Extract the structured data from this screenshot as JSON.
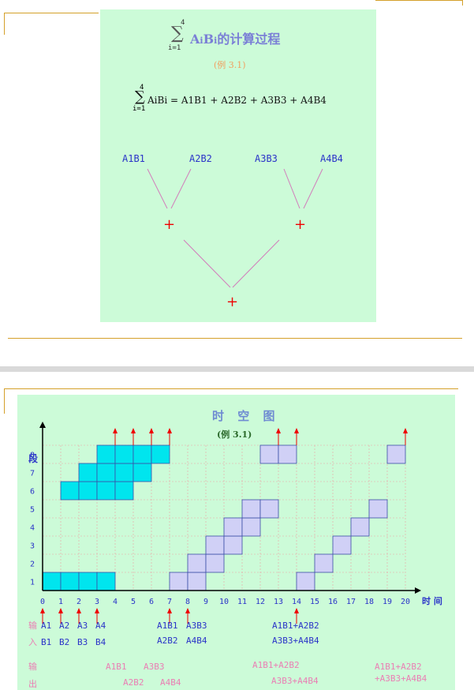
{
  "slide1": {
    "title": "ΣAiBi的计算过程",
    "sigma_top": "4",
    "sigma_bottom": "i=1",
    "subtitle": "(例 3.1)",
    "formula": "AiBi = A1B1 + A2B2 + A3B3 + A4B4",
    "formula_sigma_top": "4",
    "formula_sigma_bottom": "i=1",
    "tree_leaves": [
      "A1B1",
      "A2B2",
      "A3B3",
      "A4B4"
    ],
    "plus": "+"
  },
  "slide2": {
    "title": "时 空 图",
    "subtitle": "(例 3.1)",
    "y_axis_label": "段",
    "x_axis_label": "时 间",
    "y_ticks": [
      "1",
      "2",
      "3",
      "4",
      "5",
      "6",
      "7",
      "8"
    ],
    "x_ticks": [
      "0",
      "1",
      "2",
      "3",
      "4",
      "5",
      "6",
      "7",
      "8",
      "9",
      "10",
      "11",
      "12",
      "13",
      "14",
      "15",
      "16",
      "17",
      "18",
      "19",
      "20"
    ],
    "input_label": [
      "输",
      "入"
    ],
    "output_label": [
      "输",
      "出"
    ],
    "inputs_row1": [
      "A1",
      "A2",
      "A3",
      "A4"
    ],
    "inputs_row2": [
      "B1",
      "B2",
      "B3",
      "B4"
    ],
    "inputs2_row1": [
      "A1B1",
      "A3B3"
    ],
    "inputs2_row2": [
      "A2B2",
      "A4B4"
    ],
    "inputs3_row1": "A1B1+A2B2",
    "inputs3_row2": "A3B3+A4B4",
    "outputs_a": [
      "A1B1",
      "A3B3"
    ],
    "outputs_b": [
      "A2B2",
      "A4B4"
    ],
    "output_c1": "A1B1+A2B2",
    "output_c2": "A3B3+A4B4",
    "output_d1": "A1B1+A2B2",
    "output_d2": "+A3B3+A4B4"
  },
  "colors": {
    "panel_bg": "#ccfbd8",
    "cyan_cell": "#00e5ee",
    "lavender_cell": "#d0d0f6",
    "arrow_red": "#ee0000",
    "rule_gold": "#d4a02a"
  },
  "chart_data": {
    "type": "heatmap",
    "title": "时 空 图",
    "xlabel": "时 间",
    "ylabel": "段",
    "xlim": [
      0,
      20
    ],
    "ylim": [
      0,
      8
    ],
    "series": [
      {
        "color": "cyan",
        "cells": [
          [
            0,
            1
          ],
          [
            1,
            1
          ],
          [
            2,
            1
          ],
          [
            3,
            1
          ],
          [
            1,
            6
          ],
          [
            2,
            6
          ],
          [
            3,
            6
          ],
          [
            4,
            6
          ],
          [
            2,
            7
          ],
          [
            3,
            7
          ],
          [
            4,
            7
          ],
          [
            5,
            7
          ],
          [
            3,
            8
          ],
          [
            4,
            8
          ],
          [
            5,
            8
          ],
          [
            6,
            8
          ]
        ]
      },
      {
        "color": "lavender",
        "cells": [
          [
            7,
            1
          ],
          [
            8,
            1
          ],
          [
            8,
            2
          ],
          [
            9,
            2
          ],
          [
            9,
            3
          ],
          [
            10,
            3
          ],
          [
            10,
            4
          ],
          [
            11,
            4
          ],
          [
            11,
            5
          ],
          [
            12,
            5
          ],
          [
            12,
            8
          ],
          [
            13,
            8
          ],
          [
            14,
            1
          ],
          [
            15,
            2
          ],
          [
            16,
            3
          ],
          [
            17,
            4
          ],
          [
            18,
            5
          ],
          [
            19,
            8
          ]
        ]
      }
    ],
    "input_arrows": [
      0,
      1,
      2,
      3,
      7,
      8,
      14
    ],
    "output_arrows": [
      4,
      5,
      6,
      7,
      13,
      14,
      20
    ]
  }
}
